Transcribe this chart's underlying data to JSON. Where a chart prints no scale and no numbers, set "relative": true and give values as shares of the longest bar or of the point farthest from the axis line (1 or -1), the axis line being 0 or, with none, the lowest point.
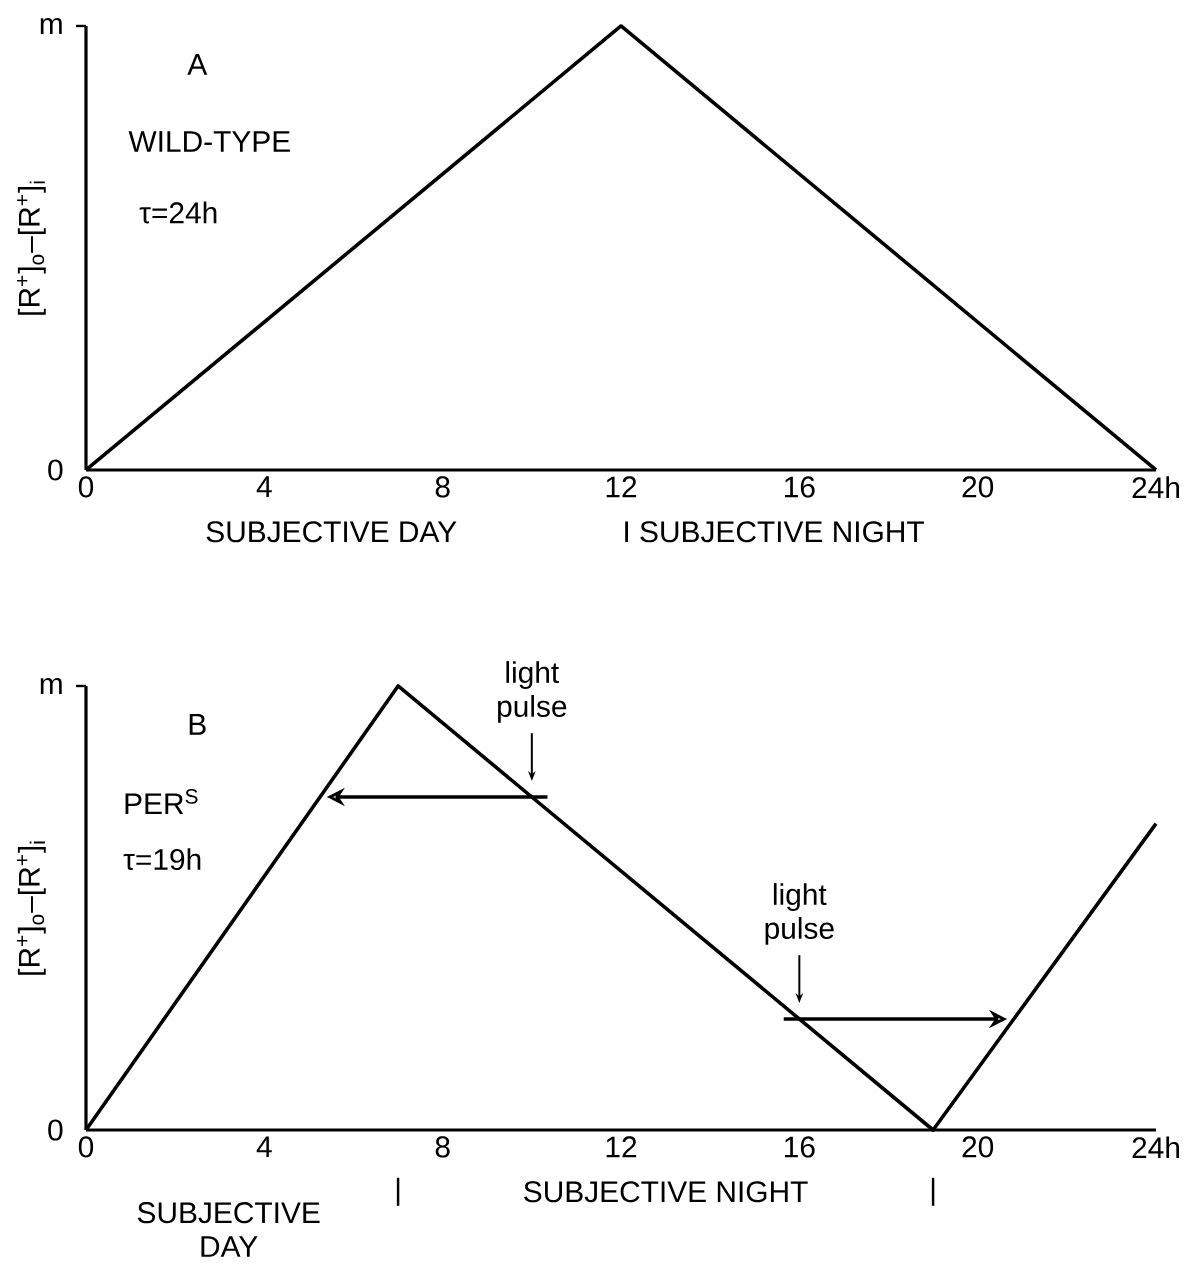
{
  "chart_data": [
    {
      "type": "line",
      "title": "A",
      "ylabel": "[R$^{+}$]$_{o}$–[R$^{+}$]$_{i}$",
      "x": [
        0,
        12,
        24
      ],
      "values": [
        0,
        1,
        0
      ],
      "color": "#000000",
      "relative": true,
      "xlim": [
        0,
        24
      ],
      "xticks": [
        0,
        4,
        8,
        12,
        16,
        20,
        {
          "value": 24,
          "label": "24h"
        }
      ],
      "annotations": [
        "0",
        "m",
        "WILD-TYPE",
        "τ=24h",
        "SUBJECTIVE DAY",
        "I SUBJECTIVE NIGHT"
      ]
    },
    {
      "type": "line",
      "title": "B",
      "ylabel": "[R$^{+}$]$_{o}$–[R$^{+}$]$_{i}$",
      "x": [
        0,
        7,
        19,
        24
      ],
      "values": [
        0,
        1,
        0,
        0.69
      ],
      "color": "#000000",
      "relative": true,
      "xlim": [
        0,
        24
      ],
      "xticks": [
        0,
        4,
        8,
        12,
        16,
        20,
        {
          "value": 24,
          "label": "24h"
        }
      ],
      "annotations": [
        "0",
        "m",
        "PER$^{S}$",
        "τ=19h",
        {
          "text": "light pulse",
          "x": 10,
          "y": 0.75
        },
        {
          "text": "light pulse",
          "x": 16,
          "y": 0.25
        },
        "SUBJECTIVE DAY",
        "|",
        "SUBJECTIVE NIGHT",
        "|"
      ]
    }
  ]
}
